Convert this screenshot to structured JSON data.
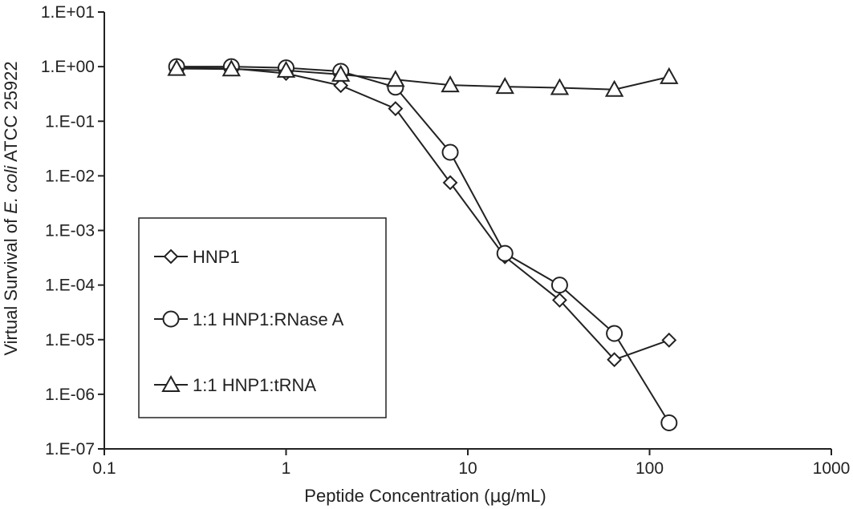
{
  "chart_data": {
    "type": "line",
    "xscale": "log",
    "yscale": "log",
    "xlim": [
      0.1,
      1000
    ],
    "ylim": [
      1e-07,
      10
    ],
    "xlabel_prefix": "Peptide Concentration (",
    "xlabel_unit_greek": "μ",
    "xlabel_suffix": "g/mL)",
    "ylabel_prefix": "Virtual Survival of ",
    "ylabel_italic": "E. coli",
    "ylabel_suffix": " ATCC 25922",
    "x_ticks": [
      {
        "value": 0.1,
        "label": "0.1"
      },
      {
        "value": 1,
        "label": "1"
      },
      {
        "value": 10,
        "label": "10"
      },
      {
        "value": 100,
        "label": "100"
      },
      {
        "value": 1000,
        "label": "1000"
      }
    ],
    "y_ticks": [
      {
        "value": 10,
        "label": "1.E+01"
      },
      {
        "value": 1,
        "label": "1.E+00"
      },
      {
        "value": 0.1,
        "label": "1.E-01"
      },
      {
        "value": 0.01,
        "label": "1.E-02"
      },
      {
        "value": 0.001,
        "label": "1.E-03"
      },
      {
        "value": 0.0001,
        "label": "1.E-04"
      },
      {
        "value": 1e-05,
        "label": "1.E-05"
      },
      {
        "value": 1e-06,
        "label": "1.E-06"
      },
      {
        "value": 1e-07,
        "label": "1.E-07"
      }
    ],
    "grid": false,
    "legend_position": "bottom-left",
    "series": [
      {
        "name": "HNP1",
        "marker": "diamond",
        "x": [
          0.25,
          0.5,
          1,
          2,
          4,
          8,
          16,
          32,
          64,
          128
        ],
        "y": [
          0.95,
          0.93,
          0.75,
          0.45,
          0.17,
          0.0075,
          0.00033,
          5.3e-05,
          4.3e-06,
          9.8e-06
        ]
      },
      {
        "name": "1:1 HNP1:RNase A",
        "marker": "circle",
        "x": [
          0.25,
          0.5,
          1,
          2,
          4,
          8,
          16,
          32,
          64,
          128
        ],
        "y": [
          1.0,
          1.0,
          0.95,
          0.82,
          0.42,
          0.027,
          0.00038,
          0.0001,
          1.3e-05,
          3e-07
        ]
      },
      {
        "name": "1:1 HNP1:tRNA",
        "marker": "triangle",
        "x": [
          0.25,
          0.5,
          1,
          2,
          4,
          8,
          16,
          32,
          64,
          128
        ],
        "y": [
          0.92,
          0.9,
          0.85,
          0.72,
          0.58,
          0.46,
          0.43,
          0.41,
          0.38,
          0.65
        ]
      }
    ]
  }
}
